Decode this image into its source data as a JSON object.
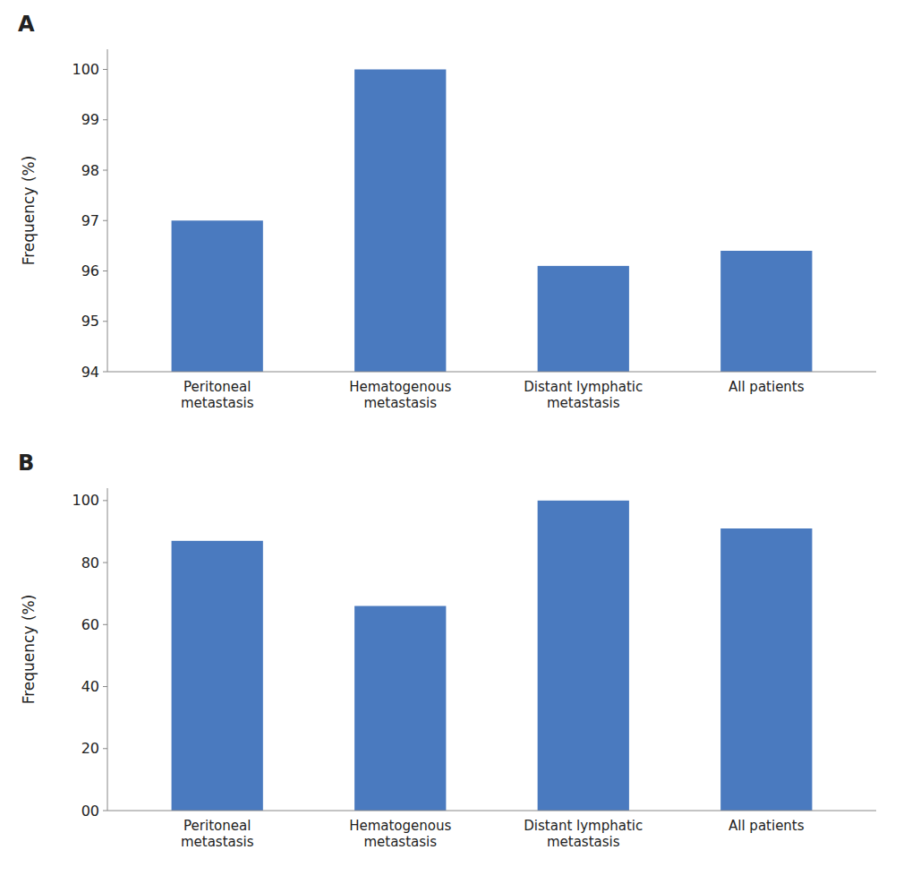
{
  "chart_data": [
    {
      "type": "bar",
      "title": "A",
      "categories": [
        "Peritoneal\nmetastasis",
        "Hematogenous\nmetastasis",
        "Distant lymphatic\nmetastasis",
        "All patients"
      ],
      "values": [
        97.0,
        100.0,
        96.1,
        96.4
      ],
      "ylabel": "Frequency (%)",
      "ylim": [
        94,
        100.4
      ],
      "yticks": [
        94,
        95,
        96,
        97,
        98,
        99,
        100
      ],
      "color": "#4a7abf"
    },
    {
      "type": "bar",
      "title": "B",
      "categories": [
        "Peritoneal\nmetastasis",
        "Hematogenous\nmetastasis",
        "Distant lymphatic\nmetastasis",
        "All patients"
      ],
      "values": [
        87.0,
        66.0,
        100.0,
        91.0
      ],
      "ylabel": "Frequency (%)",
      "ylim": [
        0,
        104
      ],
      "yticks": [
        {
          "value": 0,
          "label": "00"
        },
        20,
        40,
        60,
        80,
        100
      ],
      "color": "#4a7abf"
    }
  ]
}
